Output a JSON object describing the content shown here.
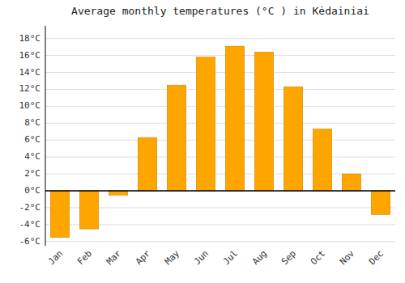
{
  "chart_data": {
    "type": "bar",
    "title": "Average monthly temperatures (°C ) in Kėdainiai",
    "categories": [
      "Jan",
      "Feb",
      "Mar",
      "Apr",
      "May",
      "Jun",
      "Jul",
      "Aug",
      "Sep",
      "Oct",
      "Nov",
      "Dec"
    ],
    "values": [
      -5.5,
      -4.5,
      -0.5,
      6.3,
      12.5,
      15.8,
      17.1,
      16.4,
      12.3,
      7.3,
      2.0,
      -2.8
    ],
    "color": "#FFA500",
    "ylim": [
      -6.5,
      19.5
    ],
    "yticks": [
      {
        "value": -6,
        "label": "-6°C"
      },
      {
        "value": -4,
        "label": "-4°C"
      },
      {
        "value": -2,
        "label": "-2°C"
      },
      {
        "value": 0,
        "label": "0°C"
      },
      {
        "value": 2,
        "label": "2°C"
      },
      {
        "value": 4,
        "label": "4°C"
      },
      {
        "value": 6,
        "label": "6°C"
      },
      {
        "value": 8,
        "label": "8°C"
      },
      {
        "value": 10,
        "label": "10°C"
      },
      {
        "value": 12,
        "label": "12°C"
      },
      {
        "value": 14,
        "label": "14°C"
      },
      {
        "value": 16,
        "label": "16°C"
      },
      {
        "value": 18,
        "label": "18°C"
      }
    ],
    "grid": true
  }
}
